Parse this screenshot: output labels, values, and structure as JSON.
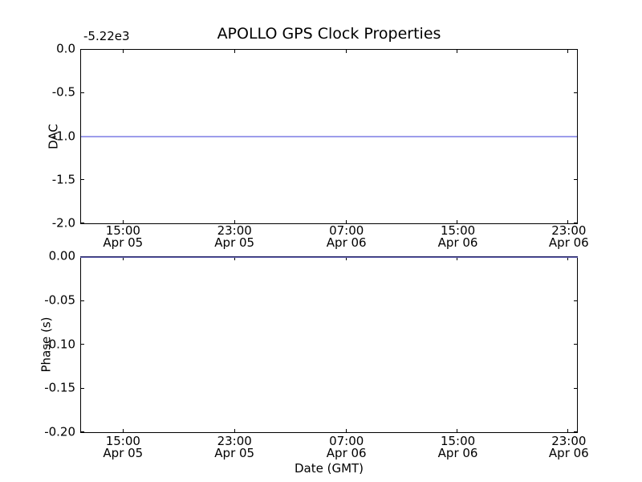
{
  "chart_data": [
    {
      "type": "line",
      "title": "APOLLO GPS Clock Properties",
      "ylabel": "DAC",
      "y_offset_label": "-5.22e3",
      "ylim": [
        -2.0,
        0.0
      ],
      "y_ticks": [
        "0.0",
        "-0.5",
        "-1.0",
        "-1.5",
        "-2.0"
      ],
      "x_ticks": [
        {
          "time": "15:00",
          "date": "Apr 05"
        },
        {
          "time": "23:00",
          "date": "Apr 05"
        },
        {
          "time": "07:00",
          "date": "Apr 06"
        },
        {
          "time": "15:00",
          "date": "Apr 06"
        },
        {
          "time": "23:00",
          "date": "Apr 06"
        }
      ],
      "x_tick_positions_pct": [
        8.6,
        31.0,
        53.5,
        75.9,
        98.2
      ],
      "series": [
        {
          "name": "DAC",
          "color": "#8181e4",
          "constant_value": -1.0
        }
      ],
      "grid": false,
      "legend": null
    },
    {
      "type": "line",
      "title": "",
      "ylabel": "Phase (s)",
      "xlabel": "Date (GMT)",
      "ylim": [
        -0.2,
        0.0
      ],
      "y_ticks": [
        "0.00",
        "-0.05",
        "-0.10",
        "-0.15",
        "-0.20"
      ],
      "x_ticks": [
        {
          "time": "15:00",
          "date": "Apr 05"
        },
        {
          "time": "23:00",
          "date": "Apr 05"
        },
        {
          "time": "07:00",
          "date": "Apr 06"
        },
        {
          "time": "15:00",
          "date": "Apr 06"
        },
        {
          "time": "23:00",
          "date": "Apr 06"
        }
      ],
      "x_tick_positions_pct": [
        8.6,
        31.0,
        53.5,
        75.9,
        98.2
      ],
      "series": [
        {
          "name": "Phase (s)",
          "color": "#8181e4",
          "constant_value": 0.0
        }
      ],
      "grid": false,
      "legend": null
    }
  ]
}
